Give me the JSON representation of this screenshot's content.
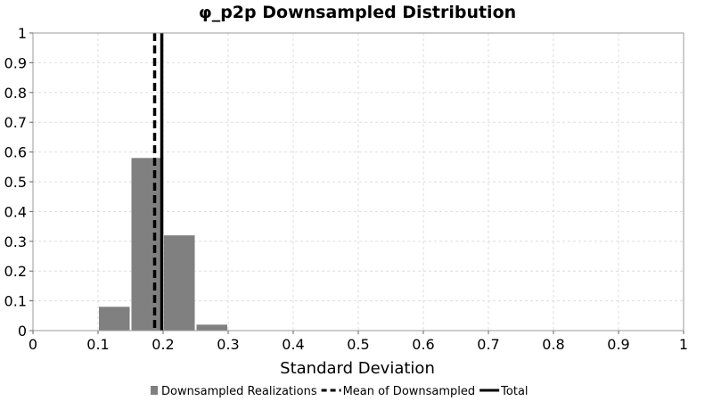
{
  "chart_data": {
    "type": "bar",
    "title": "φ_p2p Downsampled Distribution",
    "xlabel": "Standard Deviation",
    "ylabel": "",
    "xlim": [
      0,
      1
    ],
    "ylim": [
      0,
      1
    ],
    "x_ticks": [
      "0",
      "0.1",
      "0.2",
      "0.3",
      "0.4",
      "0.5",
      "0.6",
      "0.7",
      "0.8",
      "0.9",
      "1"
    ],
    "y_ticks": [
      "0",
      "0.1",
      "0.2",
      "0.3",
      "0.4",
      "0.5",
      "0.6",
      "0.7",
      "0.8",
      "0.9",
      "1"
    ],
    "grid": true,
    "bars": [
      {
        "x0": 0.1,
        "x1": 0.15,
        "value": 0.08
      },
      {
        "x0": 0.15,
        "x1": 0.2,
        "value": 0.58
      },
      {
        "x0": 0.2,
        "x1": 0.25,
        "value": 0.32
      },
      {
        "x0": 0.25,
        "x1": 0.3,
        "value": 0.02
      }
    ],
    "vlines": [
      {
        "name": "Mean of Downsampled",
        "x": 0.187,
        "style": "dashed"
      },
      {
        "name": "Total",
        "x": 0.198,
        "style": "solid"
      }
    ],
    "legend": {
      "placement": "bottom",
      "items": [
        {
          "label": "Downsampled Realizations",
          "kind": "bar"
        },
        {
          "label": "Mean of Downsampled",
          "kind": "dashed"
        },
        {
          "label": "Total",
          "kind": "solid"
        }
      ]
    },
    "colors": {
      "bar": "#808080",
      "line": "#000000",
      "grid": "#dddddd"
    }
  }
}
